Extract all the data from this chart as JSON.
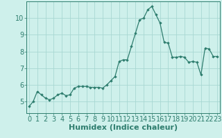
{
  "x": [
    0,
    0.5,
    1,
    1.5,
    2,
    2.5,
    3,
    3.5,
    4,
    4.5,
    5,
    5.5,
    6,
    6.5,
    7,
    7.5,
    8,
    8.5,
    9,
    9.5,
    10,
    10.5,
    11,
    11.5,
    12,
    12.5,
    13,
    13.5,
    14,
    14.5,
    15,
    15.5,
    16,
    16.5,
    17,
    17.5,
    18,
    18.5,
    19,
    19.5,
    20,
    20.5,
    21,
    21.5,
    22,
    22.5,
    23
  ],
  "y": [
    4.7,
    5.0,
    5.6,
    5.4,
    5.2,
    5.1,
    5.2,
    5.4,
    5.5,
    5.35,
    5.4,
    5.8,
    5.9,
    5.9,
    5.9,
    5.85,
    5.85,
    5.85,
    5.8,
    6.0,
    6.25,
    6.5,
    7.4,
    7.5,
    7.5,
    8.3,
    9.1,
    9.9,
    10.0,
    10.5,
    10.7,
    10.2,
    9.7,
    8.55,
    8.5,
    7.65,
    7.65,
    7.7,
    7.65,
    7.35,
    7.4,
    7.35,
    6.6,
    8.2,
    8.15,
    7.7,
    7.7
  ],
  "line_color": "#2e7d6e",
  "marker_color": "#2e7d6e",
  "bg_color": "#cef0eb",
  "grid_color": "#a8d8d2",
  "xlabel": "Humidex (Indice chaleur)",
  "xlabel_fontsize": 8,
  "tick_fontsize": 7,
  "ylim": [
    4.3,
    11.0
  ],
  "xlim": [
    -0.3,
    23.3
  ],
  "yticks": [
    5,
    6,
    7,
    8,
    9,
    10
  ],
  "xticks": [
    0,
    1,
    2,
    3,
    4,
    5,
    6,
    7,
    8,
    9,
    10,
    11,
    12,
    13,
    14,
    15,
    16,
    17,
    18,
    19,
    20,
    21,
    22,
    23
  ]
}
